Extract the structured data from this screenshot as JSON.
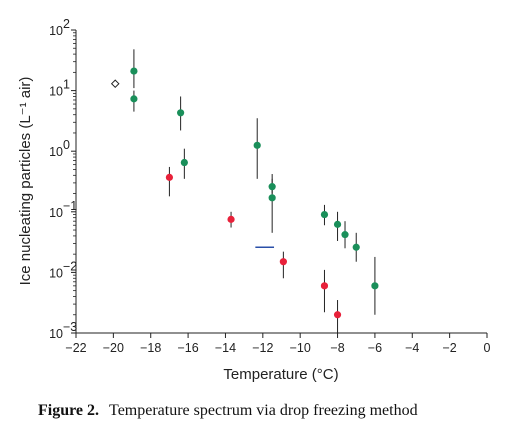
{
  "chart_data": {
    "type": "scatter",
    "xlabel": "Temperature (°C)",
    "ylabel": "Ice nucleating particles (L⁻¹ air)",
    "xlim": [
      -22,
      0
    ],
    "ylim": [
      0.001,
      100
    ],
    "yscale": "log",
    "x_ticks": [
      -22,
      -20,
      -18,
      -16,
      -14,
      -12,
      -10,
      -8,
      -6,
      -4,
      -2,
      0
    ],
    "y_tick_labels": [
      {
        "base": "10",
        "exp": "2"
      },
      {
        "base": "10",
        "exp": "1"
      },
      {
        "base": "10",
        "exp": "0"
      },
      {
        "base": "10",
        "exp": "-1"
      },
      {
        "base": "10",
        "exp": "-2"
      },
      {
        "base": "10",
        "exp": "-3"
      }
    ],
    "y_tick_values": [
      100,
      10,
      1,
      0.1,
      0.01,
      0.001
    ],
    "grid": false,
    "legend": "none",
    "series": [
      {
        "marker": "circle",
        "color": "#1a8f5a",
        "points": [
          {
            "x": -18.9,
            "y": 21,
            "ylo": 11,
            "yhi": 48
          },
          {
            "x": -18.9,
            "y": 7.3,
            "ylo": 4.5,
            "yhi": 10
          },
          {
            "x": -16.4,
            "y": 4.3,
            "ylo": 2.2,
            "yhi": 8.0
          },
          {
            "x": -16.2,
            "y": 0.65,
            "ylo": 0.35,
            "yhi": 1.1
          },
          {
            "x": -12.3,
            "y": 1.25,
            "ylo": 0.35,
            "yhi": 3.5
          },
          {
            "x": -11.5,
            "y": 0.26,
            "ylo": 0.2,
            "yhi": 0.42
          },
          {
            "x": -11.5,
            "y": 0.17,
            "ylo": 0.045,
            "yhi": 0.35
          },
          {
            "x": -8.7,
            "y": 0.09,
            "ylo": 0.06,
            "yhi": 0.13
          },
          {
            "x": -8.0,
            "y": 0.062,
            "ylo": 0.033,
            "yhi": 0.1
          },
          {
            "x": -7.6,
            "y": 0.042,
            "ylo": 0.025,
            "yhi": 0.07
          },
          {
            "x": -7.0,
            "y": 0.026,
            "ylo": 0.015,
            "yhi": 0.045
          },
          {
            "x": -6.0,
            "y": 0.006,
            "ylo": 0.002,
            "yhi": 0.018
          }
        ]
      },
      {
        "marker": "circle",
        "color": "#e8213a",
        "points": [
          {
            "x": -17.0,
            "y": 0.37,
            "ylo": 0.18,
            "yhi": 0.55
          },
          {
            "x": -13.7,
            "y": 0.075,
            "ylo": 0.055,
            "yhi": 0.1
          },
          {
            "x": -10.9,
            "y": 0.015,
            "ylo": 0.008,
            "yhi": 0.022
          },
          {
            "x": -8.7,
            "y": 0.006,
            "ylo": 0.0022,
            "yhi": 0.011
          },
          {
            "x": -8.0,
            "y": 0.002,
            "ylo": 0.001,
            "yhi": 0.0035
          }
        ]
      },
      {
        "marker": "open-diamond",
        "color": "#222222",
        "points": [
          {
            "x": -19.9,
            "y": 13
          }
        ]
      },
      {
        "marker": "line-segment",
        "color": "#2a4fa8",
        "points": [
          {
            "x": -12.4,
            "y": 0.026
          },
          {
            "x": -11.4,
            "y": 0.026
          }
        ]
      }
    ]
  },
  "caption": {
    "label": "Figure 2.",
    "text": "Temperature spectrum via drop freezing method"
  }
}
